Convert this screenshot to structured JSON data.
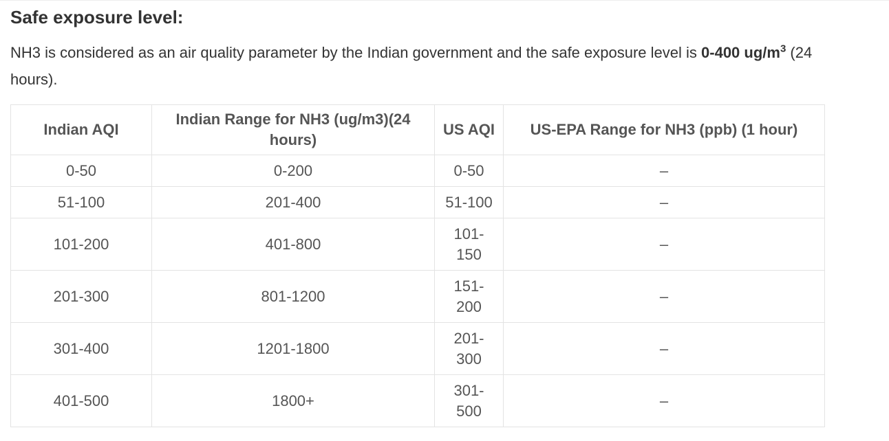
{
  "section": {
    "heading": "Safe exposure level:",
    "intro_prefix": " NH3 is considered as an air quality parameter by the Indian government and the safe exposure level is ",
    "intro_bold": "0-400 ug/m",
    "intro_sup": "3",
    "intro_suffix": " (24 hours)."
  },
  "table": {
    "headers": [
      "Indian AQI",
      "Indian Range for NH3 (ug/m3)(24 hours)",
      "US AQI",
      "US-EPA Range for NH3 (ppb) (1 hour)"
    ],
    "rows": [
      [
        "0-50",
        "0-200",
        "0-50",
        "–"
      ],
      [
        "51-100",
        "201-400",
        "51-100",
        "–"
      ],
      [
        "101-200",
        "401-800",
        "101-150",
        "–"
      ],
      [
        "201-300",
        "801-1200",
        "151-200",
        "–"
      ],
      [
        "301-400",
        "1201-1800",
        "201-300",
        "–"
      ],
      [
        "401-500",
        "1800+",
        "301-500",
        "–"
      ]
    ]
  }
}
